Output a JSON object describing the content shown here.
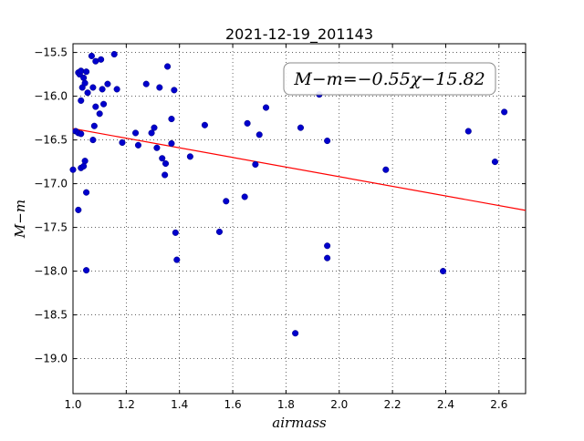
{
  "chart_data": {
    "type": "scatter",
    "title": "2021-12-19_201143",
    "xlabel": "airmass",
    "ylabel": "M−m",
    "xlim": [
      1.0,
      2.7
    ],
    "ylim": [
      -19.4,
      -15.4
    ],
    "y_inverted": true,
    "grid": true,
    "xticks": [
      1.0,
      1.2,
      1.4,
      1.6,
      1.8,
      2.0,
      2.2,
      2.4,
      2.6
    ],
    "xtick_labels": [
      "1.0",
      "1.2",
      "1.4",
      "1.6",
      "1.8",
      "2.0",
      "2.2",
      "2.4",
      "2.6"
    ],
    "yticks": [
      -15.5,
      -16.0,
      -16.5,
      -17.0,
      -17.5,
      -18.0,
      -18.5,
      -19.0
    ],
    "ytick_labels": [
      "−15.5",
      "−16.0",
      "−16.5",
      "−17.0",
      "−17.5",
      "−18.0",
      "−18.5",
      "−19.0"
    ],
    "annotation": "M−m=−0.55χ−15.82",
    "fit": {
      "slope": -0.55,
      "intercept": -15.82,
      "color": "#ff0000"
    },
    "point_color": "#0000cc",
    "points": [
      [
        1.0,
        -16.84
      ],
      [
        1.01,
        -16.4
      ],
      [
        1.02,
        -17.3
      ],
      [
        1.02,
        -16.42
      ],
      [
        1.02,
        -15.73
      ],
      [
        1.025,
        -15.75
      ],
      [
        1.03,
        -16.43
      ],
      [
        1.03,
        -16.82
      ],
      [
        1.03,
        -15.71
      ],
      [
        1.03,
        -16.05
      ],
      [
        1.035,
        -15.9
      ],
      [
        1.04,
        -15.79
      ],
      [
        1.04,
        -16.8
      ],
      [
        1.045,
        -15.85
      ],
      [
        1.045,
        -16.74
      ],
      [
        1.05,
        -17.1
      ],
      [
        1.05,
        -17.99
      ],
      [
        1.05,
        -15.72
      ],
      [
        1.055,
        -15.96
      ],
      [
        1.07,
        -15.54
      ],
      [
        1.075,
        -16.5
      ],
      [
        1.075,
        -15.9
      ],
      [
        1.08,
        -16.34
      ],
      [
        1.085,
        -16.12
      ],
      [
        1.085,
        -15.6
      ],
      [
        1.1,
        -16.2
      ],
      [
        1.105,
        -15.58
      ],
      [
        1.11,
        -15.92
      ],
      [
        1.115,
        -16.09
      ],
      [
        1.13,
        -15.86
      ],
      [
        1.155,
        -15.52
      ],
      [
        1.165,
        -15.92
      ],
      [
        1.185,
        -16.53
      ],
      [
        1.235,
        -16.42
      ],
      [
        1.245,
        -16.56
      ],
      [
        1.275,
        -15.86
      ],
      [
        1.295,
        -16.42
      ],
      [
        1.305,
        -16.36
      ],
      [
        1.315,
        -16.59
      ],
      [
        1.325,
        -15.9
      ],
      [
        1.335,
        -16.71
      ],
      [
        1.345,
        -16.9
      ],
      [
        1.348,
        -16.77
      ],
      [
        1.355,
        -15.66
      ],
      [
        1.37,
        -16.26
      ],
      [
        1.37,
        -16.54
      ],
      [
        1.38,
        -15.93
      ],
      [
        1.385,
        -17.56
      ],
      [
        1.39,
        -17.87
      ],
      [
        1.44,
        -16.69
      ],
      [
        1.495,
        -16.33
      ],
      [
        1.55,
        -17.55
      ],
      [
        1.575,
        -17.2
      ],
      [
        1.645,
        -17.15
      ],
      [
        1.655,
        -16.31
      ],
      [
        1.685,
        -16.78
      ],
      [
        1.7,
        -16.44
      ],
      [
        1.725,
        -16.13
      ],
      [
        1.835,
        -18.71
      ],
      [
        1.855,
        -16.36
      ],
      [
        1.925,
        -15.98
      ],
      [
        1.955,
        -16.51
      ],
      [
        1.955,
        -17.85
      ],
      [
        1.955,
        -17.71
      ],
      [
        2.175,
        -16.84
      ],
      [
        2.39,
        -18.0
      ],
      [
        2.485,
        -16.4
      ],
      [
        2.585,
        -16.75
      ],
      [
        2.62,
        -16.18
      ]
    ]
  }
}
